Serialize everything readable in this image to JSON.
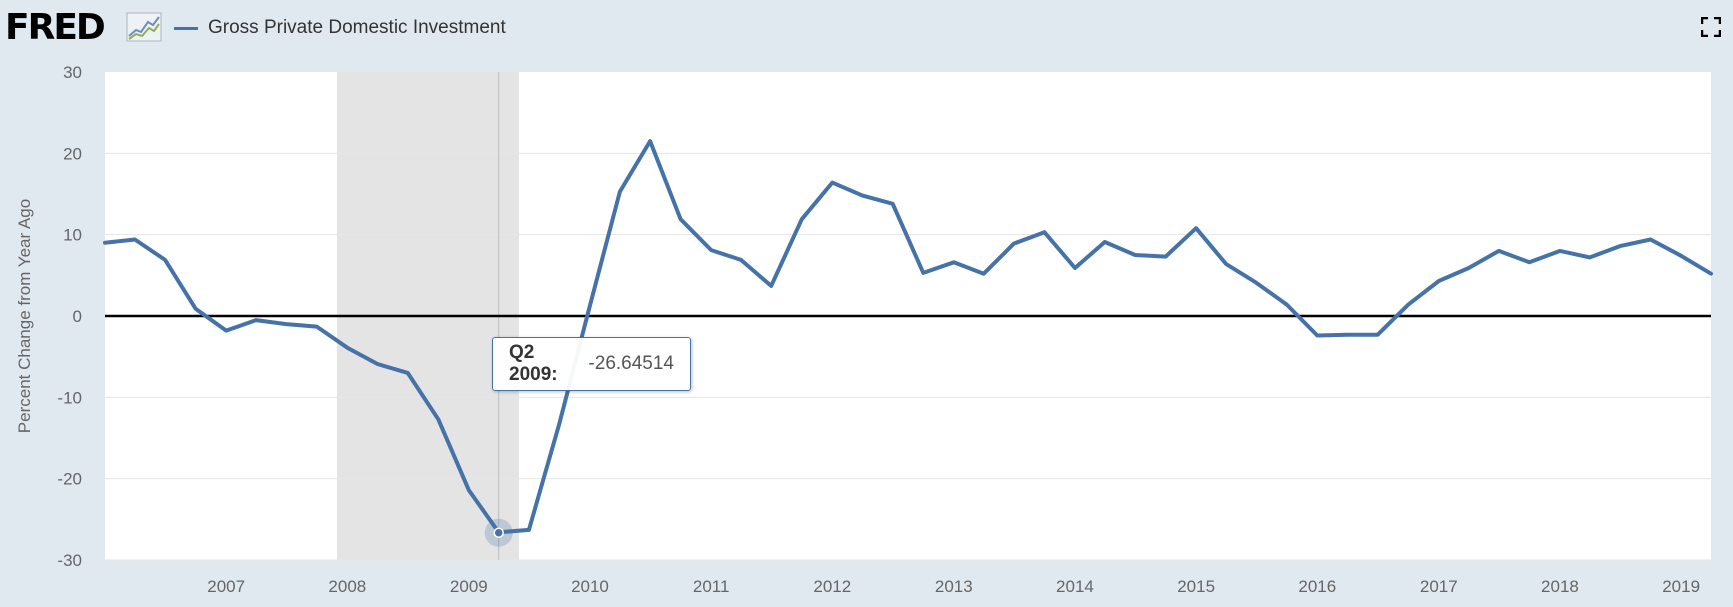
{
  "header": {
    "logo_text": "FRED",
    "legend_label": "Gross Private Domestic Investment",
    "series_color": "#4572a7",
    "icons": [
      "fred-graph-icon",
      "fullscreen-icon"
    ]
  },
  "tooltip": {
    "label": "Q2 2009:",
    "value": "-26.64514"
  },
  "chart_data": {
    "type": "line",
    "title": "",
    "ylabel": "Percent Change from Year Ago",
    "xlabel": "",
    "ylim": [
      -30,
      30
    ],
    "yticks": [
      -30,
      -20,
      -10,
      0,
      10,
      20,
      30
    ],
    "xlim": [
      "2006-01-01",
      "2019-04-01"
    ],
    "xtick_labels": [
      "2007",
      "2008",
      "2009",
      "2010",
      "2011",
      "2012",
      "2013",
      "2014",
      "2015",
      "2016",
      "2017",
      "2018",
      "2019"
    ],
    "recession_shading": [
      "2007-12-01",
      "2009-06-01"
    ],
    "zero_line": true,
    "grid": true,
    "highlighted_point": {
      "x": "2009-04-01",
      "y": -26.64514
    },
    "series": [
      {
        "name": "Gross Private Domestic Investment",
        "color": "#4572a7",
        "x": [
          "2006-01-01",
          "2006-04-01",
          "2006-07-01",
          "2006-10-01",
          "2007-01-01",
          "2007-04-01",
          "2007-07-01",
          "2007-10-01",
          "2008-01-01",
          "2008-04-01",
          "2008-07-01",
          "2008-10-01",
          "2009-01-01",
          "2009-04-01",
          "2009-07-01",
          "2009-10-01",
          "2010-01-01",
          "2010-04-01",
          "2010-07-01",
          "2010-10-01",
          "2011-01-01",
          "2011-04-01",
          "2011-07-01",
          "2011-10-01",
          "2012-01-01",
          "2012-04-01",
          "2012-07-01",
          "2012-10-01",
          "2013-01-01",
          "2013-04-01",
          "2013-07-01",
          "2013-10-01",
          "2014-01-01",
          "2014-04-01",
          "2014-07-01",
          "2014-10-01",
          "2015-01-01",
          "2015-04-01",
          "2015-07-01",
          "2015-10-01",
          "2016-01-01",
          "2016-04-01",
          "2016-07-01",
          "2016-10-01",
          "2017-01-01",
          "2017-04-01",
          "2017-07-01",
          "2017-10-01",
          "2018-01-01",
          "2018-04-01",
          "2018-07-01",
          "2018-10-01",
          "2019-01-01",
          "2019-04-01"
        ],
        "values": [
          9.0,
          9.4,
          6.9,
          0.9,
          -1.8,
          -0.5,
          -1.0,
          -1.3,
          -3.9,
          -5.9,
          -7.0,
          -12.7,
          -21.4,
          -26.6,
          -26.3,
          -13.2,
          1.3,
          15.3,
          21.5,
          11.9,
          8.1,
          6.9,
          3.7,
          11.9,
          16.4,
          14.8,
          13.8,
          5.3,
          6.6,
          5.2,
          8.9,
          10.3,
          5.9,
          9.1,
          7.5,
          7.3,
          10.8,
          6.4,
          4.1,
          1.4,
          -2.4,
          -2.3,
          -2.3,
          1.4,
          4.3,
          5.9,
          8.0,
          6.6,
          8.0,
          7.2,
          8.6,
          9.4,
          7.4,
          5.2
        ]
      }
    ]
  }
}
